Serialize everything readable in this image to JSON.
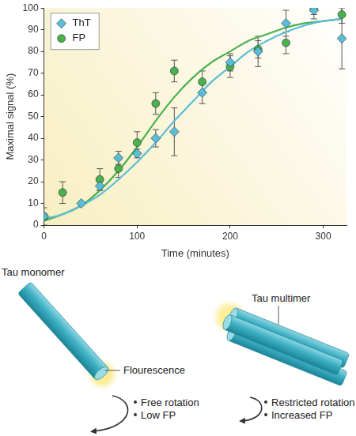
{
  "chart_data": {
    "type": "scatter",
    "x_label": "Time (minutes)",
    "y_label": "Maximal signal (%)",
    "xlim": [
      0,
      325
    ],
    "xticks": [
      0,
      100,
      200,
      300
    ],
    "ylim": [
      0,
      100
    ],
    "yticks": [
      0,
      10,
      20,
      30,
      40,
      50,
      60,
      70,
      80,
      90,
      100
    ],
    "grid": false,
    "legend": "top-left",
    "series": [
      {
        "name": "ThT",
        "color": "#5bbcd8",
        "marker": "diamond",
        "x": [
          0,
          40,
          60,
          80,
          100,
          120,
          140,
          170,
          200,
          230,
          260,
          290,
          320
        ],
        "values": [
          4,
          10,
          18,
          31,
          33,
          40,
          43,
          61,
          75,
          80,
          93,
          99,
          86
        ],
        "errors": [
          null,
          null,
          2,
          3,
          2,
          4,
          11,
          5,
          4,
          7,
          6,
          4,
          14
        ],
        "fit": {
          "x": [
            0,
            20,
            40,
            60,
            80,
            100,
            120,
            140,
            160,
            180,
            200,
            220,
            240,
            260,
            280,
            300,
            320
          ],
          "values": [
            3,
            5,
            9,
            14,
            21,
            29,
            38,
            48,
            57,
            66,
            73,
            80,
            85,
            89,
            92,
            94,
            95
          ]
        }
      },
      {
        "name": "FP",
        "color": "#4caf50",
        "marker": "circle",
        "x": [
          0,
          20,
          60,
          80,
          100,
          120,
          140,
          170,
          200,
          230,
          260,
          290,
          320
        ],
        "values": [
          4,
          15,
          21,
          26,
          38,
          56,
          71,
          66,
          73,
          81,
          84,
          100,
          97
        ],
        "errors": [
          4,
          5,
          5,
          4,
          5,
          5,
          5,
          5,
          5,
          4,
          5,
          3,
          4
        ],
        "fit": {
          "x": [
            0,
            20,
            40,
            60,
            80,
            100,
            120,
            140,
            160,
            180,
            200,
            220,
            240,
            260,
            280,
            300,
            320
          ],
          "values": [
            2,
            5,
            9,
            16,
            25,
            36,
            48,
            59,
            68,
            75,
            80,
            85,
            88,
            91,
            93,
            94,
            95
          ]
        }
      }
    ]
  },
  "diagram": {
    "monomer": {
      "label": "Tau monomer",
      "glow_label": "Flourescence",
      "notes": [
        "Free rotation",
        "Low FP"
      ]
    },
    "multimer": {
      "label": "Tau multimer",
      "notes": [
        "Restricted rotation",
        "Increased FP"
      ]
    }
  }
}
